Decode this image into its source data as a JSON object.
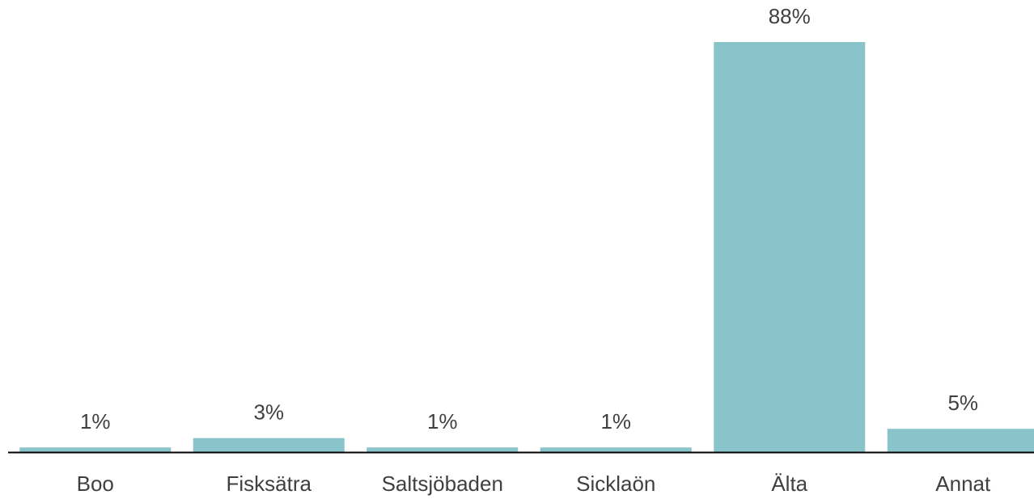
{
  "chart_data": {
    "type": "bar",
    "categories": [
      "Boo",
      "Fisksätra",
      "Saltsjöbaden",
      "Sicklaön",
      "Älta",
      "Annat"
    ],
    "values": [
      1,
      3,
      1,
      1,
      88,
      5
    ],
    "value_labels": [
      "1%",
      "3%",
      "1%",
      "1%",
      "88%",
      "5%"
    ],
    "color": "#8ac4cb"
  }
}
